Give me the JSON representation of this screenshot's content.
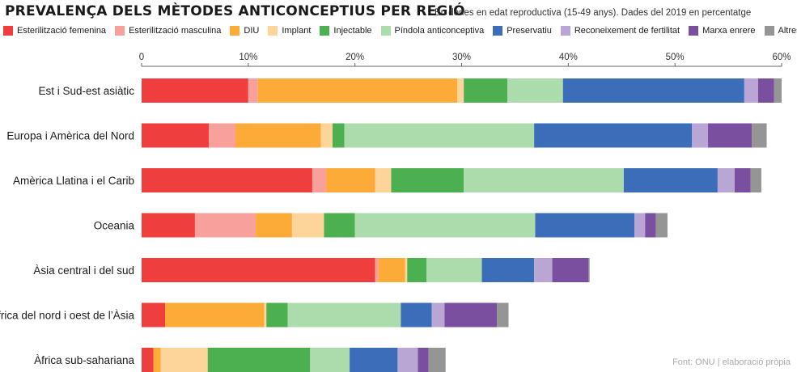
{
  "title": "PREVALENÇA DELS MÈTODES ANTICONCEPTIUS PER REGIÓ",
  "subtitle": "En dones en edat reproductiva (15-49 anys). Dades del 2019 en percentatge",
  "source": "Font: ONU | elaboració pròpia",
  "chart_data": {
    "type": "bar",
    "orientation": "horizontal",
    "stacked": true,
    "categories": [
      "Est i Sud-est asiàtic",
      "Europa i Amèrica del Nord",
      "Amèrica Llatina i el Carib",
      "Oceania",
      "Àsia central i del sud",
      "Àfrica del nord i oest de l’Àsia",
      "Àfrica sub-sahariana"
    ],
    "series": [
      {
        "name": "Esterilització femenina",
        "color": "#ef3e3e",
        "values": [
          10.0,
          6.3,
          16.0,
          5.0,
          21.9,
          2.2,
          1.1
        ]
      },
      {
        "name": "Esterilització masculina",
        "color": "#f7a09c",
        "values": [
          0.9,
          2.5,
          1.3,
          5.7,
          0.3,
          0.0,
          0.0
        ]
      },
      {
        "name": "DIU",
        "color": "#fcab38",
        "values": [
          18.7,
          8.0,
          4.6,
          3.4,
          2.5,
          9.3,
          0.7
        ]
      },
      {
        "name": "Implant",
        "color": "#fdd49a",
        "values": [
          0.6,
          1.1,
          1.5,
          3.0,
          0.2,
          0.2,
          4.4
        ]
      },
      {
        "name": "Injectable",
        "color": "#4db050",
        "values": [
          4.1,
          1.1,
          6.8,
          2.9,
          1.8,
          2.0,
          9.6
        ]
      },
      {
        "name": "Píndola anticonceptiva",
        "color": "#acdcab",
        "values": [
          5.2,
          17.8,
          15.0,
          16.9,
          5.2,
          10.6,
          3.7
        ]
      },
      {
        "name": "Preservatiu",
        "color": "#3b6db8",
        "values": [
          17.0,
          14.8,
          8.8,
          9.3,
          4.9,
          2.9,
          4.5
        ]
      },
      {
        "name": "Reconeixement de fertilitat",
        "color": "#b9a6d4",
        "values": [
          1.3,
          1.5,
          1.6,
          1.0,
          1.7,
          1.2,
          1.9
        ]
      },
      {
        "name": "Marxa enrere",
        "color": "#7a4fa0",
        "values": [
          1.5,
          4.1,
          1.5,
          1.0,
          3.4,
          4.9,
          1.0
        ]
      },
      {
        "name": "Altres",
        "color": "#959595",
        "values": [
          0.7,
          1.4,
          1.0,
          1.1,
          0.1,
          1.1,
          1.6
        ]
      }
    ],
    "x_ticks": [
      "0",
      "10%",
      "20%",
      "30%",
      "40%",
      "50%",
      "60%"
    ],
    "xlim": [
      0,
      60
    ],
    "xlabel": "",
    "ylabel": "",
    "grid": false,
    "legend_position": "top"
  }
}
